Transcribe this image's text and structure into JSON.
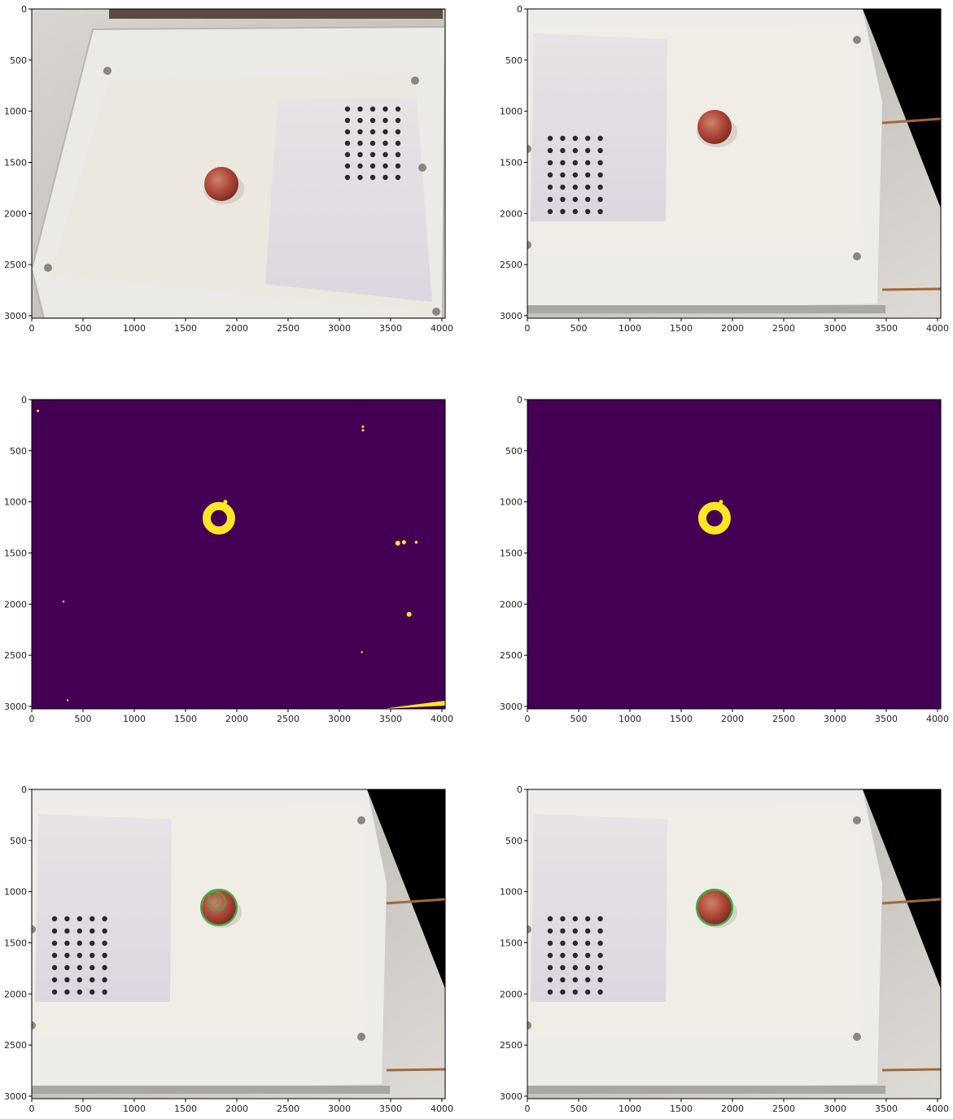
{
  "figure": {
    "layout": "3 rows x 2 columns of image panels"
  },
  "chart_data": [
    {
      "type": "image",
      "content": "original photo: white tray with paper sheet, lavender calibration card with 7x5 black dot grid, red apple",
      "xlim": [
        0,
        4032
      ],
      "ylim": [
        3024,
        0
      ],
      "xticks": [
        0,
        500,
        1000,
        1500,
        2000,
        2500,
        3000,
        3500,
        4000
      ],
      "yticks": [
        0,
        500,
        1000,
        1500,
        2000,
        2500,
        3000
      ],
      "grid": false
    },
    {
      "type": "image",
      "content": "perspective-corrected photo with calibration card on left, apple center, black wedge at right edge",
      "xlim": [
        0,
        4032
      ],
      "ylim": [
        3024,
        0
      ],
      "xticks": [
        0,
        500,
        1000,
        1500,
        2000,
        2500,
        3000,
        3500,
        4000
      ],
      "yticks": [
        0,
        500,
        1000,
        1500,
        2000,
        2500,
        3000
      ],
      "grid": false
    },
    {
      "type": "heatmap",
      "content": "binary mask (viridis): apple ring plus noise specks",
      "colors": {
        "background": "#440154",
        "foreground": "#fde725"
      },
      "xlim": [
        0,
        4032
      ],
      "ylim": [
        3024,
        0
      ],
      "xticks": [
        0,
        500,
        1000,
        1500,
        2000,
        2500,
        3000,
        3500,
        4000
      ],
      "yticks": [
        0,
        500,
        1000,
        1500,
        2000,
        2500,
        3000
      ],
      "grid": false
    },
    {
      "type": "heatmap",
      "content": "cleaned binary mask (viridis): apple ring only",
      "colors": {
        "background": "#440154",
        "foreground": "#fde725"
      },
      "xlim": [
        0,
        4032
      ],
      "ylim": [
        3024,
        0
      ],
      "xticks": [
        0,
        500,
        1000,
        1500,
        2000,
        2500,
        3000,
        3500,
        4000
      ],
      "yticks": [
        0,
        500,
        1000,
        1500,
        2000,
        2500,
        3000
      ],
      "grid": false
    },
    {
      "type": "image",
      "content": "corrected photo with green contours over apple (noisy)",
      "colors": {
        "contour": "#3cb043"
      },
      "xlim": [
        0,
        4032
      ],
      "ylim": [
        3024,
        0
      ],
      "xticks": [
        0,
        500,
        1000,
        1500,
        2000,
        2500,
        3000,
        3500,
        4000
      ],
      "yticks": [
        0,
        500,
        1000,
        1500,
        2000,
        2500,
        3000
      ],
      "grid": false
    },
    {
      "type": "image",
      "content": "corrected photo with single green outline around apple",
      "colors": {
        "contour": "#3cb043"
      },
      "xlim": [
        0,
        4032
      ],
      "ylim": [
        3024,
        0
      ],
      "xticks": [
        0,
        500,
        1000,
        1500,
        2000,
        2500,
        3000,
        3500,
        4000
      ],
      "yticks": [
        0,
        500,
        1000,
        1500,
        2000,
        2500,
        3000
      ],
      "grid": false
    }
  ]
}
